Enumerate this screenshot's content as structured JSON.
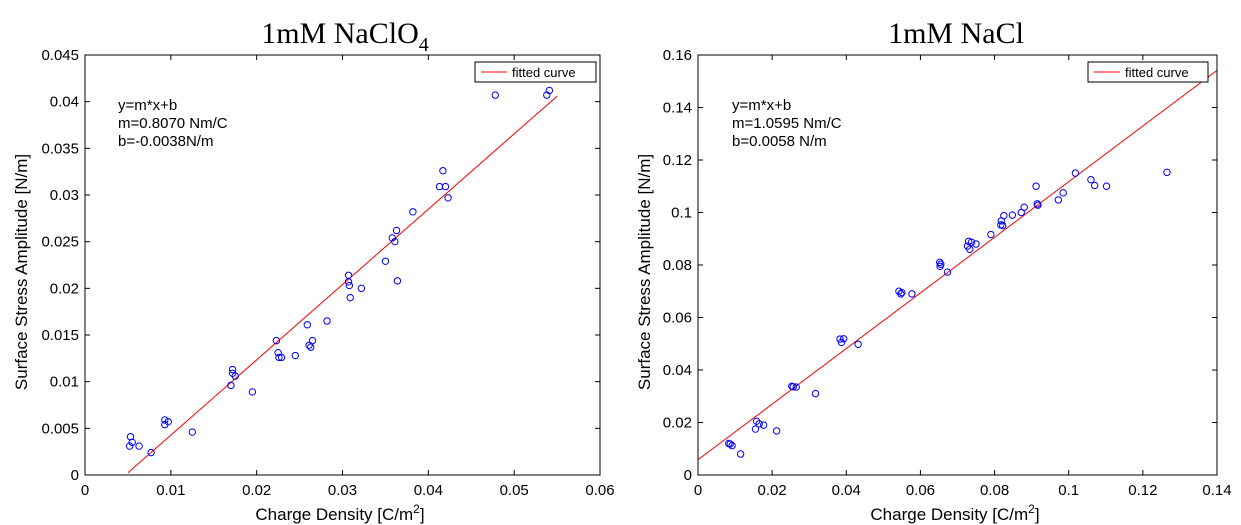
{
  "colors": {
    "marker": "#0000ff",
    "fit_line": "#ff0000",
    "axes": "#000000",
    "background": "#ffffff"
  },
  "chart_data": [
    {
      "type": "scatter",
      "title": "1mM NaClO",
      "title_subscript": "4",
      "xlabel": "Charge Density [C/m",
      "xlabel_superscript": "2",
      "xlabel_suffix": "]",
      "ylabel": "Surface Stress Amplitude [N/m]",
      "xlim": [
        0,
        0.06
      ],
      "ylim": [
        0,
        0.045
      ],
      "xticks": [
        0,
        0.01,
        0.02,
        0.03,
        0.04,
        0.05,
        0.06
      ],
      "xtick_labels": [
        "0",
        "0.01",
        "0.02",
        "0.03",
        "0.04",
        "0.05",
        "0.06"
      ],
      "yticks": [
        0,
        0.005,
        0.01,
        0.015,
        0.02,
        0.025,
        0.03,
        0.035,
        0.04,
        0.045
      ],
      "ytick_labels": [
        "0",
        "0.005",
        "0.01",
        "0.015",
        "0.02",
        "0.025",
        "0.03",
        "0.035",
        "0.04",
        "0.045"
      ],
      "grid": false,
      "legend": {
        "position": "top-right",
        "entries": [
          "fitted curve"
        ]
      },
      "annotations": [
        "y=m*x+b",
        "m=0.8070 Nm/C",
        "b=-0.0038N/m"
      ],
      "fit": {
        "slope": 0.807,
        "intercept": -0.0038,
        "x_range": [
          0.005,
          0.055
        ]
      },
      "series": [
        {
          "name": "",
          "points": [
            [
              0.0053,
              0.0041
            ],
            [
              0.0055,
              0.0035
            ],
            [
              0.0052,
              0.0031
            ],
            [
              0.0063,
              0.0031
            ],
            [
              0.0077,
              0.0024
            ],
            [
              0.0093,
              0.0059
            ],
            [
              0.0093,
              0.0054
            ],
            [
              0.0097,
              0.0057
            ],
            [
              0.0125,
              0.0046
            ],
            [
              0.017,
              0.0096
            ],
            [
              0.0172,
              0.0113
            ],
            [
              0.0172,
              0.0109
            ],
            [
              0.0175,
              0.0106
            ],
            [
              0.0195,
              0.0089
            ],
            [
              0.0223,
              0.0144
            ],
            [
              0.0225,
              0.0131
            ],
            [
              0.0226,
              0.0126
            ],
            [
              0.0229,
              0.0126
            ],
            [
              0.0245,
              0.0128
            ],
            [
              0.0259,
              0.0161
            ],
            [
              0.0261,
              0.0139
            ],
            [
              0.0263,
              0.0137
            ],
            [
              0.0265,
              0.0144
            ],
            [
              0.0282,
              0.0165
            ],
            [
              0.0307,
              0.0214
            ],
            [
              0.0307,
              0.0207
            ],
            [
              0.0308,
              0.0203
            ],
            [
              0.0309,
              0.019
            ],
            [
              0.0322,
              0.02
            ],
            [
              0.035,
              0.0229
            ],
            [
              0.0358,
              0.0254
            ],
            [
              0.0361,
              0.025
            ],
            [
              0.0363,
              0.0262
            ],
            [
              0.0364,
              0.0208
            ],
            [
              0.0382,
              0.0282
            ],
            [
              0.0413,
              0.0309
            ],
            [
              0.0417,
              0.0326
            ],
            [
              0.042,
              0.0309
            ],
            [
              0.0423,
              0.0297
            ],
            [
              0.0478,
              0.0407
            ],
            [
              0.0538,
              0.0407
            ],
            [
              0.0541,
              0.0412
            ]
          ]
        }
      ]
    },
    {
      "type": "scatter",
      "title": "1mM NaCl",
      "title_subscript": "",
      "xlabel": "Charge Density [C/m",
      "xlabel_superscript": "2",
      "xlabel_suffix": "]",
      "ylabel": "Surface Stress Amplitude [N/m]",
      "xlim": [
        0,
        0.14
      ],
      "ylim": [
        0,
        0.16
      ],
      "xticks": [
        0,
        0.02,
        0.04,
        0.06,
        0.08,
        0.1,
        0.12,
        0.14
      ],
      "xtick_labels": [
        "0",
        "0.02",
        "0.04",
        "0.06",
        "0.08",
        "0.1",
        "0.12",
        "0.14"
      ],
      "yticks": [
        0,
        0.02,
        0.04,
        0.06,
        0.08,
        0.1,
        0.12,
        0.14,
        0.16
      ],
      "ytick_labels": [
        "0",
        "0.02",
        "0.04",
        "0.06",
        "0.08",
        "0.1",
        "0.12",
        "0.14",
        "0.16"
      ],
      "grid": false,
      "legend": {
        "position": "top-right",
        "entries": [
          "fitted curve"
        ]
      },
      "annotations": [
        "y=m*x+b",
        "m=1.0595 Nm/C",
        "b=0.0058 N/m"
      ],
      "fit": {
        "slope": 1.0595,
        "intercept": 0.0058,
        "x_range": [
          0,
          0.14
        ]
      },
      "series": [
        {
          "name": "",
          "points": [
            [
              0.0083,
              0.012
            ],
            [
              0.0087,
              0.0118
            ],
            [
              0.0092,
              0.0112
            ],
            [
              0.0115,
              0.008
            ],
            [
              0.0155,
              0.0175
            ],
            [
              0.0158,
              0.0205
            ],
            [
              0.0165,
              0.0195
            ],
            [
              0.0177,
              0.019
            ],
            [
              0.0212,
              0.0168
            ],
            [
              0.0253,
              0.0338
            ],
            [
              0.0257,
              0.0336
            ],
            [
              0.0265,
              0.0335
            ],
            [
              0.0317,
              0.031
            ],
            [
              0.0383,
              0.0518
            ],
            [
              0.0387,
              0.0505
            ],
            [
              0.0393,
              0.0519
            ],
            [
              0.0432,
              0.0498
            ],
            [
              0.0542,
              0.07
            ],
            [
              0.0547,
              0.069
            ],
            [
              0.055,
              0.0695
            ],
            [
              0.0577,
              0.069
            ],
            [
              0.0652,
              0.081
            ],
            [
              0.0655,
              0.0803
            ],
            [
              0.0653,
              0.0795
            ],
            [
              0.0673,
              0.0773
            ],
            [
              0.0727,
              0.0872
            ],
            [
              0.073,
              0.089
            ],
            [
              0.0733,
              0.086
            ],
            [
              0.0738,
              0.0887
            ],
            [
              0.075,
              0.088
            ],
            [
              0.079,
              0.0916
            ],
            [
              0.0817,
              0.0953
            ],
            [
              0.0818,
              0.0968
            ],
            [
              0.0822,
              0.095
            ],
            [
              0.0825,
              0.0988
            ],
            [
              0.0848,
              0.099
            ],
            [
              0.0872,
              0.1
            ],
            [
              0.088,
              0.102
            ],
            [
              0.0912,
              0.11
            ],
            [
              0.0915,
              0.1033
            ],
            [
              0.0917,
              0.1028
            ],
            [
              0.1018,
              0.115
            ],
            [
              0.0972,
              0.1048
            ],
            [
              0.0985,
              0.1075
            ],
            [
              0.106,
              0.1125
            ],
            [
              0.107,
              0.1103
            ],
            [
              0.1102,
              0.11
            ],
            [
              0.1265,
              0.1153
            ]
          ]
        }
      ]
    }
  ]
}
